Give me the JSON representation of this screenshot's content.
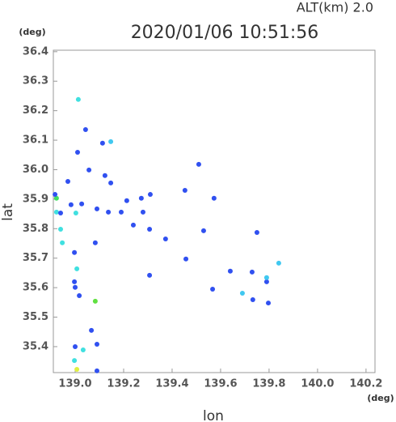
{
  "chart_data": {
    "type": "scatter",
    "title": "2020/01/06 10:51:56",
    "subtitle": "ALT(km)  2.0",
    "x_label": "lon",
    "y_label": "lat",
    "x_unit": "(deg)",
    "y_unit": "(deg)",
    "xlim": [
      138.91,
      140.237
    ],
    "ylim": [
      35.312,
      36.405
    ],
    "xticks": [
      {
        "value": 139.0,
        "label": "139.0"
      },
      139.2,
      139.4,
      139.6,
      139.8,
      {
        "value": 140.0,
        "label": "140.0"
      },
      140.2
    ],
    "yticks": [
      {
        "value": 35.4,
        "label": "35.4"
      },
      35.5,
      35.6,
      35.7,
      35.8,
      35.9,
      {
        "value": 36.0,
        "label": "36.0"
      },
      36.1,
      36.2,
      36.3,
      36.4
    ],
    "x": [
      139.013,
      139.043,
      139.01,
      139.057,
      139.113,
      139.147,
      139.123,
      139.147,
      138.97,
      138.923,
      138.923,
      138.94,
      138.983,
      139.003,
      139.027,
      139.09,
      139.137,
      139.19,
      139.213,
      139.273,
      139.28,
      139.31,
      139.24,
      139.307,
      139.373,
      138.94,
      138.947,
      138.997,
      139.083,
      139.007,
      139.0,
      139.017,
      138.997,
      139.083,
      139.457,
      139.307,
      139.567,
      139.64,
      139.73,
      139.79,
      139.797,
      139.733,
      139.69,
      139.75,
      139.84,
      139.79,
      139.067,
      139.09,
      139.0,
      139.033,
      138.997,
      139.007,
      139.09,
      139.51,
      139.453,
      139.573,
      139.53,
      138.917
    ],
    "values": [
      36.238,
      36.136,
      36.059,
      35.999,
      36.09,
      36.095,
      35.98,
      35.955,
      35.96,
      35.903,
      35.856,
      35.853,
      35.881,
      35.853,
      35.884,
      35.867,
      35.856,
      35.856,
      35.895,
      35.903,
      35.856,
      35.916,
      35.812,
      35.798,
      35.765,
      35.798,
      35.752,
      35.719,
      35.752,
      35.664,
      35.601,
      35.573,
      35.62,
      35.554,
      35.697,
      35.642,
      35.595,
      35.656,
      35.653,
      35.62,
      35.548,
      35.559,
      35.581,
      35.787,
      35.683,
      35.634,
      35.455,
      35.408,
      35.4,
      35.389,
      35.353,
      35.323,
      35.318,
      36.018,
      35.93,
      35.903,
      35.793,
      35.916
    ],
    "colors": [
      "#40e0e0",
      "#3050f0",
      "#3050f0",
      "#3050f0",
      "#3050f0",
      "#40c8f0",
      "#3050f0",
      "#3050f0",
      "#3050f0",
      "#40e060",
      "#40e0e0",
      "#3050f0",
      "#3050f0",
      "#40e0e0",
      "#3050f0",
      "#3050f0",
      "#3050f0",
      "#3050f0",
      "#3050f0",
      "#3050f0",
      "#3050f0",
      "#3050f0",
      "#3050f0",
      "#3050f0",
      "#3050f0",
      "#40e0e0",
      "#40e0e0",
      "#3050f0",
      "#3050f0",
      "#40e0e0",
      "#3050f0",
      "#3050f0",
      "#3050f0",
      "#60e040",
      "#3050f0",
      "#3050f0",
      "#3050f0",
      "#3050f0",
      "#3050f0",
      "#3050f0",
      "#3050f0",
      "#3050f0",
      "#40c8f0",
      "#3050f0",
      "#40c8f0",
      "#40c8f0",
      "#3050f0",
      "#3050f0",
      "#3050f0",
      "#40e0e0",
      "#40e0e0",
      "#e0f040",
      "#3050f0",
      "#3050f0",
      "#3050f0",
      "#3050f0",
      "#3050f0",
      "#3050f0"
    ]
  }
}
